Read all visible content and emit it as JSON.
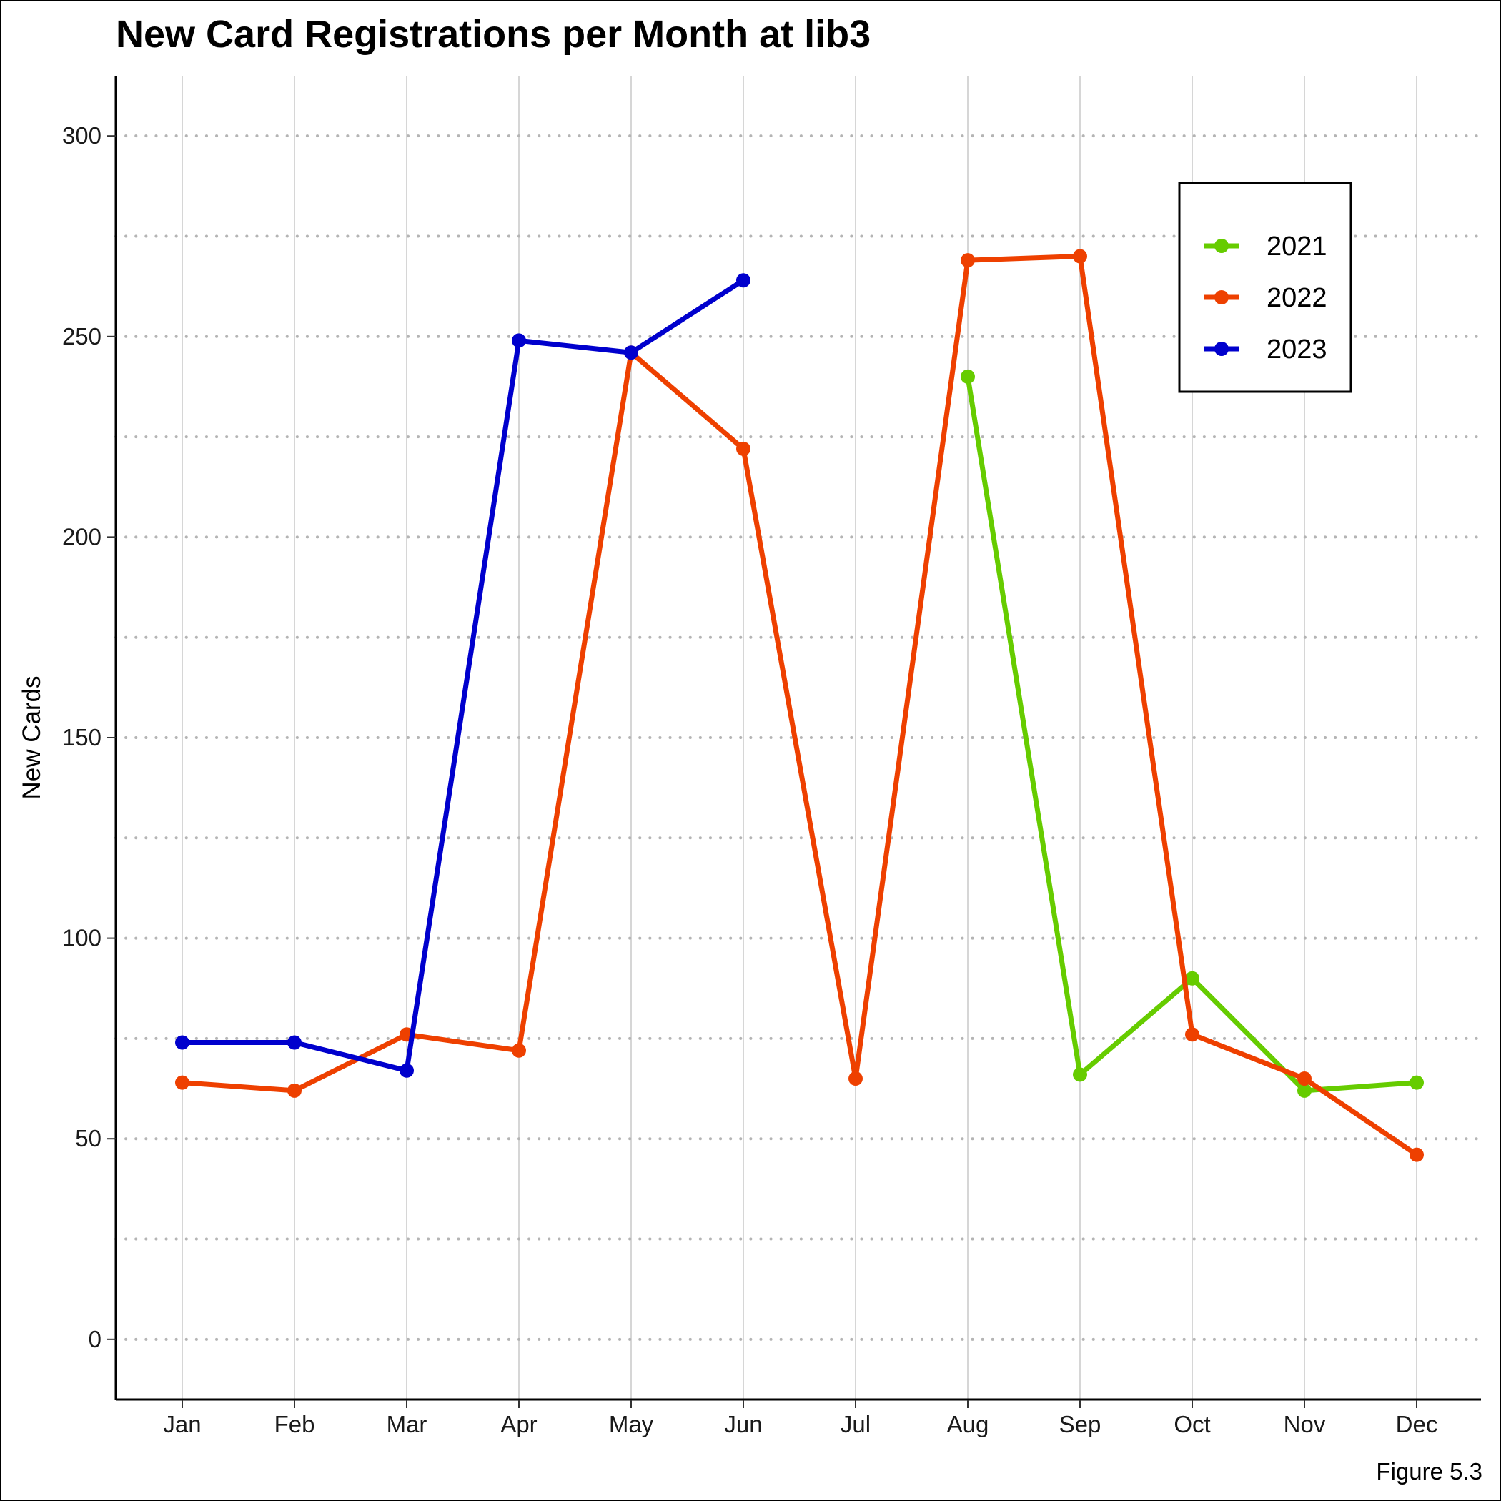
{
  "chart_data": {
    "type": "line",
    "title": "New Card Registrations per Month at lib3",
    "xlabel": "",
    "ylabel": "New Cards",
    "caption": "Figure 5.3",
    "categories": [
      "Jan",
      "Feb",
      "Mar",
      "Apr",
      "May",
      "Jun",
      "Jul",
      "Aug",
      "Sep",
      "Oct",
      "Nov",
      "Dec"
    ],
    "ylim": [
      -15,
      315
    ],
    "yticks": [
      0,
      50,
      100,
      150,
      200,
      250,
      300
    ],
    "grid": {
      "major_y": "dotted",
      "minor_y": "dotted",
      "vertical": true
    },
    "legend_position": "top-right",
    "series": [
      {
        "name": "2021",
        "color": "#66CC00",
        "values": [
          null,
          null,
          null,
          null,
          null,
          null,
          null,
          240,
          66,
          90,
          62,
          64
        ]
      },
      {
        "name": "2022",
        "color": "#EE4000",
        "values": [
          64,
          62,
          76,
          72,
          246,
          222,
          65,
          269,
          270,
          76,
          65,
          46
        ]
      },
      {
        "name": "2023",
        "color": "#0000CD",
        "values": [
          74,
          74,
          67,
          249,
          246,
          264,
          null,
          null,
          null,
          null,
          null,
          null
        ]
      }
    ]
  }
}
